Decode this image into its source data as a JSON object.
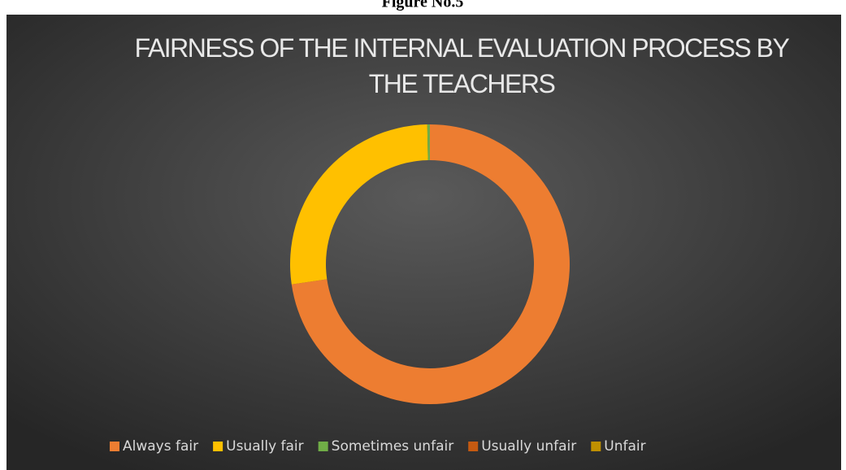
{
  "caption": "Figure No.5",
  "chart_data": {
    "type": "donut",
    "title": "FAIRNESS OF THE INTERNAL EVALUATION PROCESS BY THE TEACHERS",
    "categories": [
      "Always fair",
      "Usually fair",
      "Sometimes unfair",
      "Usually unfair",
      "Unfair"
    ],
    "values": [
      72.7,
      27,
      0.3,
      0,
      0
    ],
    "colors": [
      "#ED7D31",
      "#FFC000",
      "#70AD47",
      "#C55A11",
      "#BF9000"
    ],
    "legend": "bottom"
  }
}
